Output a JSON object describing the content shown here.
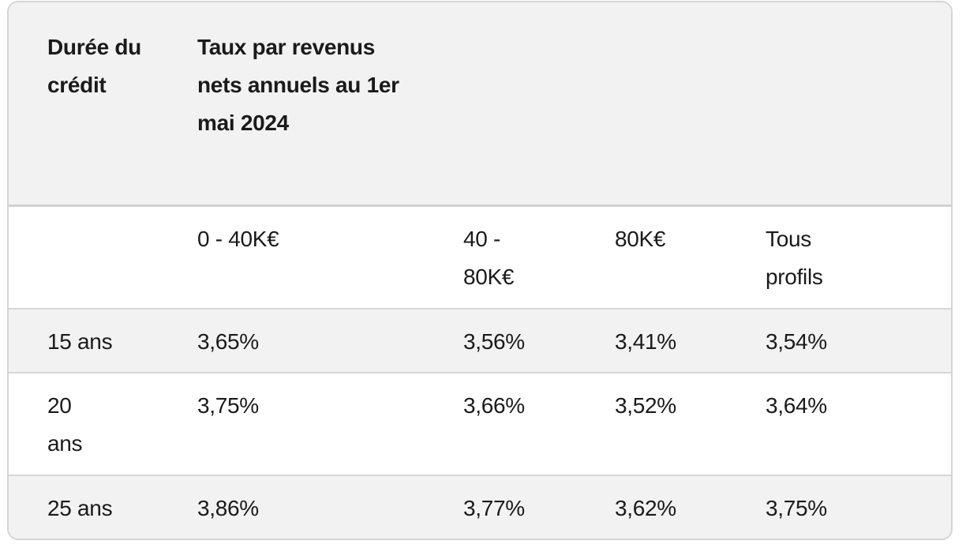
{
  "table": {
    "headers": {
      "duration": "Durée du crédit",
      "rates": "Taux par revenus nets annuels au 1er mai 2024"
    },
    "income_brackets": [
      "0 - 40K€",
      "40 - 80K€",
      "80K€",
      "Tous profils"
    ],
    "rows": [
      {
        "duration": "15 ans",
        "values": [
          "3,65%",
          "3,56%",
          "3,41%",
          "3,54%"
        ]
      },
      {
        "duration": "20 ans",
        "values": [
          "3,75%",
          "3,66%",
          "3,52%",
          "3,64%"
        ]
      },
      {
        "duration": "25 ans",
        "values": [
          "3,86%",
          "3,77%",
          "3,62%",
          "3,75%"
        ]
      }
    ]
  }
}
